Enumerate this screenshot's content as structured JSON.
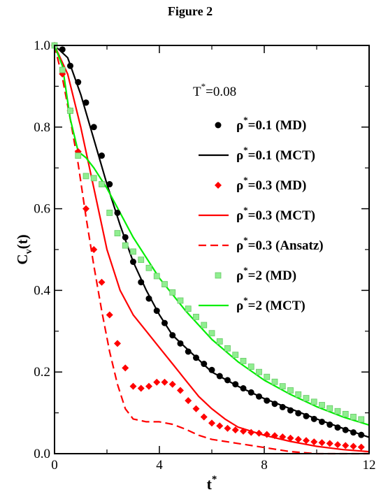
{
  "figure_title": "Figure 2",
  "annotation": {
    "base": "T",
    "sup": "*",
    "rest": "=0.08"
  },
  "chart_data": {
    "type": "line",
    "title": "Figure 2",
    "xlabel": {
      "base": "t",
      "sup": "*"
    },
    "ylabel": {
      "base": "C",
      "sub": "v",
      "rest": "(t)"
    },
    "xlim": [
      0,
      12
    ],
    "ylim": [
      0,
      1.0
    ],
    "xticks": [
      0,
      4,
      8,
      12
    ],
    "yticks": [
      0.0,
      0.2,
      0.4,
      0.6,
      0.8,
      1.0
    ],
    "xtick_labels": [
      "0",
      "4",
      "8",
      "12"
    ],
    "ytick_labels": [
      "0.0",
      "0.2",
      "0.4",
      "0.6",
      "0.8",
      "1.0"
    ],
    "legend_position": "right",
    "series": [
      {
        "name": "ρ*=0.1 (MD)",
        "label": {
          "base": "ρ",
          "sup": "*",
          "rest": "=0.1 (MD)"
        },
        "style": "markers",
        "marker": "circle",
        "color": "#000000",
        "points": [
          [
            0.0,
            1.0
          ],
          [
            0.3,
            0.99
          ],
          [
            0.6,
            0.95
          ],
          [
            0.9,
            0.91
          ],
          [
            1.2,
            0.86
          ],
          [
            1.5,
            0.8
          ],
          [
            1.8,
            0.73
          ],
          [
            2.1,
            0.66
          ],
          [
            2.4,
            0.59
          ],
          [
            2.7,
            0.53
          ],
          [
            3.0,
            0.47
          ],
          [
            3.3,
            0.42
          ],
          [
            3.6,
            0.38
          ],
          [
            3.9,
            0.35
          ],
          [
            4.2,
            0.32
          ],
          [
            4.5,
            0.29
          ],
          [
            4.8,
            0.27
          ],
          [
            5.1,
            0.25
          ],
          [
            5.4,
            0.235
          ],
          [
            5.7,
            0.22
          ],
          [
            6.0,
            0.205
          ],
          [
            6.3,
            0.19
          ],
          [
            6.6,
            0.18
          ],
          [
            6.9,
            0.17
          ],
          [
            7.2,
            0.16
          ],
          [
            7.5,
            0.15
          ],
          [
            7.8,
            0.14
          ],
          [
            8.1,
            0.13
          ],
          [
            8.4,
            0.122
          ],
          [
            8.7,
            0.114
          ],
          [
            9.0,
            0.106
          ],
          [
            9.3,
            0.099
          ],
          [
            9.6,
            0.092
          ],
          [
            9.9,
            0.085
          ],
          [
            10.2,
            0.078
          ],
          [
            10.5,
            0.071
          ],
          [
            10.8,
            0.064
          ],
          [
            11.1,
            0.058
          ],
          [
            11.4,
            0.052
          ],
          [
            11.7,
            0.046
          ]
        ]
      },
      {
        "name": "ρ*=0.1 (MCT)",
        "label": {
          "base": "ρ",
          "sup": "*",
          "rest": "=0.1 (MCT)"
        },
        "style": "solid",
        "color": "#000000",
        "points": [
          [
            0.0,
            1.0
          ],
          [
            0.5,
            0.97
          ],
          [
            1.0,
            0.88
          ],
          [
            1.5,
            0.77
          ],
          [
            2.0,
            0.66
          ],
          [
            2.5,
            0.56
          ],
          [
            3.0,
            0.47
          ],
          [
            3.5,
            0.4
          ],
          [
            4.0,
            0.34
          ],
          [
            4.5,
            0.29
          ],
          [
            5.0,
            0.26
          ],
          [
            5.5,
            0.23
          ],
          [
            6.0,
            0.2
          ],
          [
            7.0,
            0.165
          ],
          [
            8.0,
            0.135
          ],
          [
            9.0,
            0.11
          ],
          [
            10.0,
            0.085
          ],
          [
            11.0,
            0.062
          ],
          [
            12.0,
            0.04
          ]
        ]
      },
      {
        "name": "ρ*=0.3 (MD)",
        "label": {
          "base": "ρ",
          "sup": "*",
          "rest": "=0.3 (MD)"
        },
        "style": "markers",
        "marker": "diamond",
        "color": "#ff0000",
        "points": [
          [
            0.0,
            1.0
          ],
          [
            0.3,
            0.93
          ],
          [
            0.6,
            0.84
          ],
          [
            0.9,
            0.74
          ],
          [
            1.2,
            0.6
          ],
          [
            1.5,
            0.5
          ],
          [
            1.8,
            0.42
          ],
          [
            2.1,
            0.34
          ],
          [
            2.4,
            0.27
          ],
          [
            2.7,
            0.21
          ],
          [
            3.0,
            0.165
          ],
          [
            3.3,
            0.16
          ],
          [
            3.6,
            0.165
          ],
          [
            3.9,
            0.175
          ],
          [
            4.2,
            0.175
          ],
          [
            4.5,
            0.17
          ],
          [
            4.8,
            0.155
          ],
          [
            5.1,
            0.13
          ],
          [
            5.4,
            0.11
          ],
          [
            5.7,
            0.09
          ],
          [
            6.0,
            0.075
          ],
          [
            6.3,
            0.068
          ],
          [
            6.6,
            0.062
          ],
          [
            6.9,
            0.058
          ],
          [
            7.2,
            0.055
          ],
          [
            7.5,
            0.052
          ],
          [
            7.8,
            0.05
          ],
          [
            8.1,
            0.047
          ],
          [
            8.4,
            0.044
          ],
          [
            8.7,
            0.041
          ],
          [
            9.0,
            0.038
          ],
          [
            9.3,
            0.035
          ],
          [
            9.6,
            0.032
          ],
          [
            9.9,
            0.029
          ],
          [
            10.2,
            0.027
          ],
          [
            10.5,
            0.025
          ],
          [
            10.8,
            0.022
          ],
          [
            11.1,
            0.02
          ],
          [
            11.4,
            0.018
          ],
          [
            11.7,
            0.016
          ]
        ]
      },
      {
        "name": "ρ*=0.3 (MCT)",
        "label": {
          "base": "ρ",
          "sup": "*",
          "rest": "=0.3 (MCT)"
        },
        "style": "solid",
        "color": "#ff0000",
        "points": [
          [
            0.0,
            1.0
          ],
          [
            0.5,
            0.93
          ],
          [
            1.0,
            0.8
          ],
          [
            1.5,
            0.65
          ],
          [
            2.0,
            0.5
          ],
          [
            2.5,
            0.4
          ],
          [
            3.0,
            0.34
          ],
          [
            3.5,
            0.3
          ],
          [
            4.0,
            0.26
          ],
          [
            4.5,
            0.22
          ],
          [
            5.0,
            0.18
          ],
          [
            5.5,
            0.14
          ],
          [
            6.0,
            0.11
          ],
          [
            6.5,
            0.085
          ],
          [
            7.0,
            0.065
          ],
          [
            8.0,
            0.045
          ],
          [
            9.0,
            0.03
          ],
          [
            10.0,
            0.018
          ],
          [
            11.0,
            0.01
          ],
          [
            12.0,
            0.005
          ]
        ]
      },
      {
        "name": "ρ*=0.3 (Ansatz)",
        "label": {
          "base": "ρ",
          "sup": "*",
          "rest": "=0.3 (Ansatz)"
        },
        "style": "dashed",
        "color": "#ff0000",
        "points": [
          [
            0.0,
            1.0
          ],
          [
            0.3,
            0.92
          ],
          [
            0.6,
            0.82
          ],
          [
            0.9,
            0.71
          ],
          [
            1.2,
            0.58
          ],
          [
            1.5,
            0.46
          ],
          [
            1.8,
            0.35
          ],
          [
            2.1,
            0.25
          ],
          [
            2.4,
            0.17
          ],
          [
            2.7,
            0.11
          ],
          [
            3.0,
            0.085
          ],
          [
            3.5,
            0.078
          ],
          [
            4.0,
            0.078
          ],
          [
            4.5,
            0.072
          ],
          [
            5.0,
            0.06
          ],
          [
            5.5,
            0.045
          ],
          [
            6.0,
            0.035
          ],
          [
            7.0,
            0.025
          ],
          [
            8.0,
            0.015
          ],
          [
            9.0,
            0.005
          ],
          [
            10.0,
            0.0
          ],
          [
            12.0,
            0.0
          ]
        ]
      },
      {
        "name": "ρ*=2 (MD)",
        "label": {
          "base": "ρ",
          "sup": "*",
          "rest": "=2 (MD)"
        },
        "style": "markers",
        "marker": "square",
        "color": "#90ee90",
        "points": [
          [
            0.0,
            1.0
          ],
          [
            0.3,
            0.94
          ],
          [
            0.6,
            0.84
          ],
          [
            0.9,
            0.73
          ],
          [
            1.2,
            0.68
          ],
          [
            1.5,
            0.675
          ],
          [
            1.8,
            0.66
          ],
          [
            2.1,
            0.59
          ],
          [
            2.4,
            0.54
          ],
          [
            2.7,
            0.51
          ],
          [
            3.0,
            0.495
          ],
          [
            3.3,
            0.475
          ],
          [
            3.6,
            0.455
          ],
          [
            3.9,
            0.435
          ],
          [
            4.2,
            0.415
          ],
          [
            4.5,
            0.395
          ],
          [
            4.8,
            0.375
          ],
          [
            5.1,
            0.355
          ],
          [
            5.4,
            0.335
          ],
          [
            5.7,
            0.315
          ],
          [
            6.0,
            0.295
          ],
          [
            6.3,
            0.275
          ],
          [
            6.6,
            0.258
          ],
          [
            6.9,
            0.242
          ],
          [
            7.2,
            0.227
          ],
          [
            7.5,
            0.213
          ],
          [
            7.8,
            0.2
          ],
          [
            8.1,
            0.188
          ],
          [
            8.4,
            0.176
          ],
          [
            8.7,
            0.165
          ],
          [
            9.0,
            0.155
          ],
          [
            9.3,
            0.145
          ],
          [
            9.6,
            0.136
          ],
          [
            9.9,
            0.127
          ],
          [
            10.2,
            0.119
          ],
          [
            10.5,
            0.111
          ],
          [
            10.8,
            0.104
          ],
          [
            11.1,
            0.097
          ],
          [
            11.4,
            0.09
          ],
          [
            11.7,
            0.084
          ]
        ]
      },
      {
        "name": "ρ*=2 (MCT)",
        "label": {
          "base": "ρ",
          "sup": "*",
          "rest": "=2 (MCT)"
        },
        "style": "solid",
        "color": "#00ee00",
        "points": [
          [
            0.0,
            1.0
          ],
          [
            0.3,
            0.95
          ],
          [
            0.6,
            0.82
          ],
          [
            0.9,
            0.74
          ],
          [
            1.2,
            0.725
          ],
          [
            1.5,
            0.7
          ],
          [
            2.0,
            0.65
          ],
          [
            2.5,
            0.59
          ],
          [
            3.0,
            0.53
          ],
          [
            3.5,
            0.48
          ],
          [
            4.0,
            0.43
          ],
          [
            4.5,
            0.39
          ],
          [
            5.0,
            0.35
          ],
          [
            6.0,
            0.28
          ],
          [
            7.0,
            0.225
          ],
          [
            8.0,
            0.18
          ],
          [
            9.0,
            0.145
          ],
          [
            10.0,
            0.115
          ],
          [
            11.0,
            0.09
          ],
          [
            12.0,
            0.07
          ]
        ]
      }
    ]
  }
}
